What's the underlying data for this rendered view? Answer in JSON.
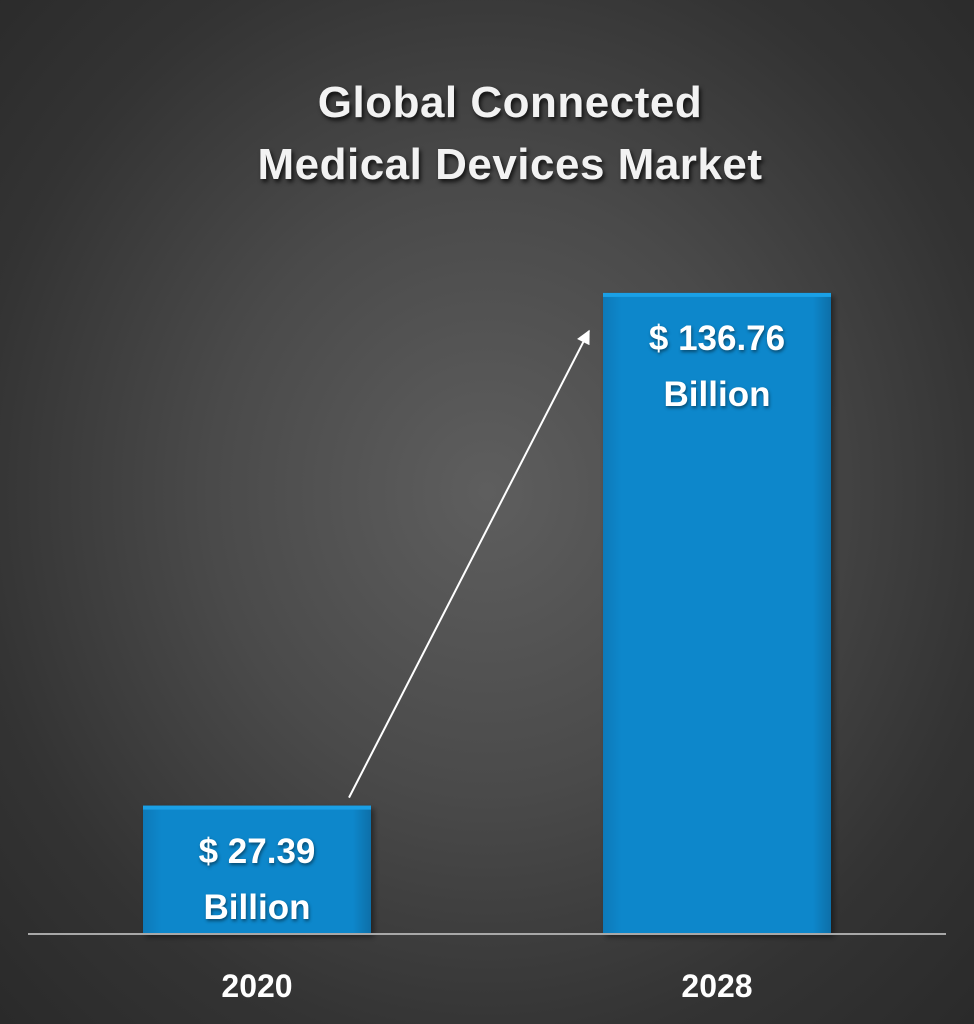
{
  "chart_data": {
    "type": "bar",
    "title_lines": [
      "Global Connected",
      "Medical Devices Market"
    ],
    "categories": [
      "2020",
      "2028"
    ],
    "values": [
      27.39,
      136.76
    ],
    "value_labels": [
      [
        "$ 27.39",
        "Billion"
      ],
      [
        "$ 136.76",
        "Billion"
      ]
    ],
    "ylim": [
      0,
      160
    ],
    "grid": false,
    "legend": "none",
    "colors": {
      "bar": "#0787cb",
      "bar_highlight": "#1aa0e6",
      "background": "#4a4a4a",
      "axis": "#a8a8a8",
      "arrow": "#ffffff"
    }
  }
}
